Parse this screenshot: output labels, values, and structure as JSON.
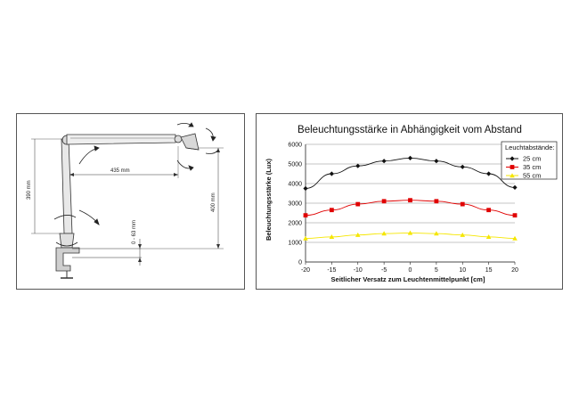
{
  "diagram": {
    "dimensions": {
      "height_arm": "390 mm",
      "reach": "435 mm",
      "height_total": "400 mm",
      "clamp_range": "0 - 63 mm"
    }
  },
  "chart_data": {
    "type": "line",
    "title": "Beleuchtungsstärke in Abhängigkeit vom Abstand",
    "xlabel": "Seitlicher Versatz zum Leuchtenmittelpunkt [cm]",
    "ylabel": "Beleuchtungsstärke (Lux)",
    "x": [
      -20,
      -15,
      -10,
      -5,
      0,
      5,
      10,
      15,
      20
    ],
    "xticks": [
      "-20",
      "-15",
      "-10",
      "-5",
      "0",
      "5",
      "10",
      "15",
      "20"
    ],
    "ylim": [
      0,
      6000
    ],
    "yticks": [
      "0",
      "1000",
      "2000",
      "3000",
      "4000",
      "5000",
      "6000"
    ],
    "grid": true,
    "legend_title": "Leuchtabstände:",
    "legend_position": "top-right",
    "series": [
      {
        "name": "25 cm",
        "color": "#111111",
        "marker": "diamond",
        "values": [
          3750,
          4500,
          4900,
          5150,
          5300,
          5150,
          4850,
          4500,
          3800
        ]
      },
      {
        "name": "35 cm",
        "color": "#e00000",
        "marker": "square",
        "values": [
          2380,
          2650,
          2950,
          3100,
          3150,
          3100,
          2950,
          2650,
          2380
        ]
      },
      {
        "name": "55 cm",
        "color": "#f5e600",
        "marker": "triangle",
        "values": [
          1200,
          1280,
          1380,
          1450,
          1480,
          1450,
          1380,
          1280,
          1200
        ]
      }
    ]
  }
}
